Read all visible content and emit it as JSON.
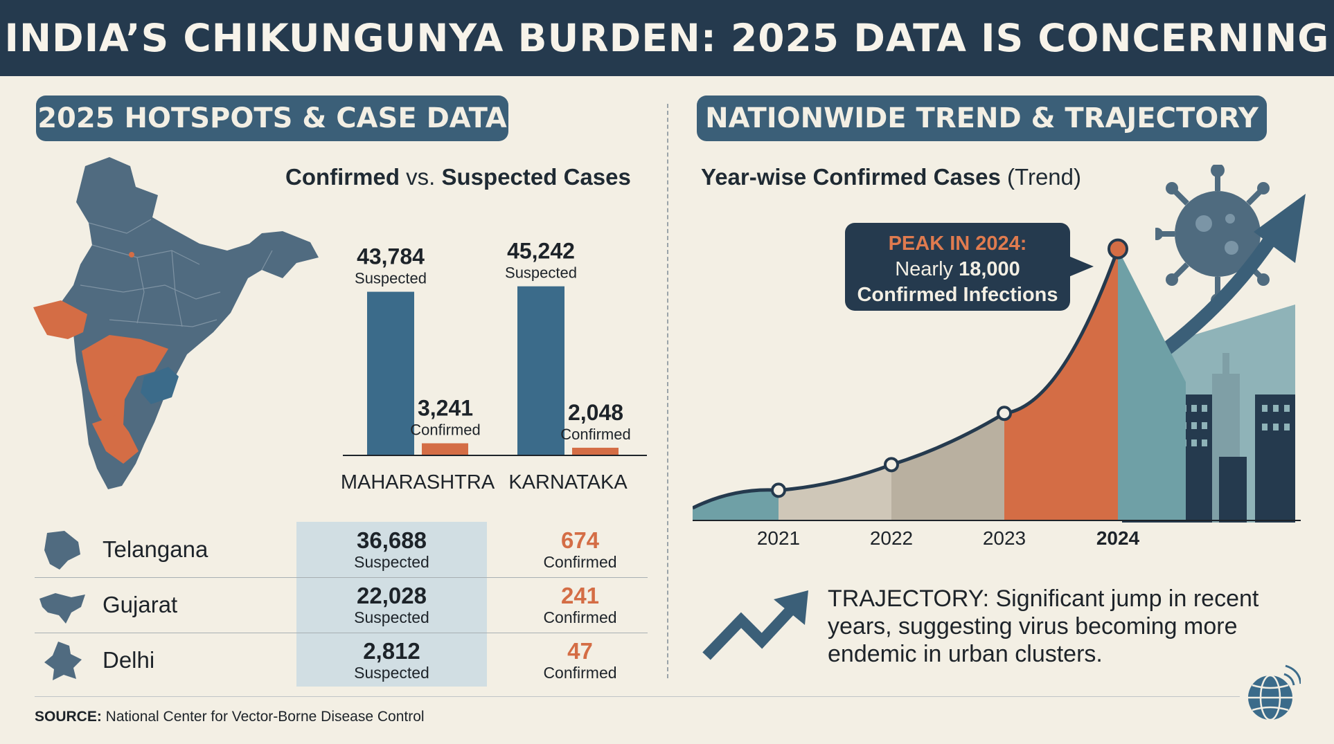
{
  "header": {
    "title": "INDIA’S CHIKUNGUNYA BURDEN: 2025 DATA IS CONCERNING"
  },
  "left": {
    "pill": "2025 HOTSPOTS & CASE DATA",
    "subtitle": {
      "part1": "Confirmed",
      "part2": " vs. ",
      "part3": "Suspected Cases"
    }
  },
  "right": {
    "pill": "NATIONWIDE TREND & TRAJECTORY",
    "subtitle": {
      "part1": "Year-wise Confirmed Cases",
      "part2": " (Trend)"
    },
    "callout": {
      "line1": "PEAK IN 2024:",
      "line2a": "Nearly ",
      "line2b": "18,000",
      "line3": "Confirmed Infections"
    },
    "trajectory": {
      "label": "TRAJECTORY:",
      "text": " Significant jump in recent years, suggesting virus becoming more endemic in urban clusters."
    }
  },
  "states": [
    {
      "name": "Telangana",
      "suspected": "36,688",
      "suspected_label": "Suspected",
      "confirmed": "674",
      "confirmed_label": "Confirmed"
    },
    {
      "name": "Gujarat",
      "suspected": "22,028",
      "suspected_label": "Suspected",
      "confirmed": "241",
      "confirmed_label": "Confirmed"
    },
    {
      "name": "Delhi",
      "suspected": "2,812",
      "suspected_label": "Suspected",
      "confirmed": "47",
      "confirmed_label": "Confirmed"
    }
  ],
  "source": {
    "label": "SOURCE:",
    "text": " National Center for Vector-Borne Disease Control"
  },
  "colors": {
    "navy": "#253a4e",
    "steel": "#3b6b8a",
    "orange": "#d46d45",
    "teal": "#5f8f97",
    "background": "#f3efe4"
  },
  "chart_data": [
    {
      "type": "bar",
      "title": "Confirmed vs. Suspected Cases",
      "categories": [
        "MAHARASHTRA",
        "KARNATAKA"
      ],
      "series": [
        {
          "name": "Suspected",
          "values": [
            43784,
            45242
          ],
          "labels": [
            "43,784",
            "45,242"
          ]
        },
        {
          "name": "Confirmed",
          "values": [
            3241,
            2048
          ],
          "labels": [
            "3,241",
            "2,048"
          ]
        }
      ],
      "ylim": [
        0,
        50000
      ]
    },
    {
      "type": "area",
      "title": "Year-wise Confirmed Cases (Trend)",
      "x": [
        "2021",
        "2022",
        "2023",
        "2024"
      ],
      "values": [
        2000,
        3700,
        7100,
        18000
      ],
      "ylim": [
        0,
        20000
      ],
      "highlight": "2024"
    }
  ]
}
